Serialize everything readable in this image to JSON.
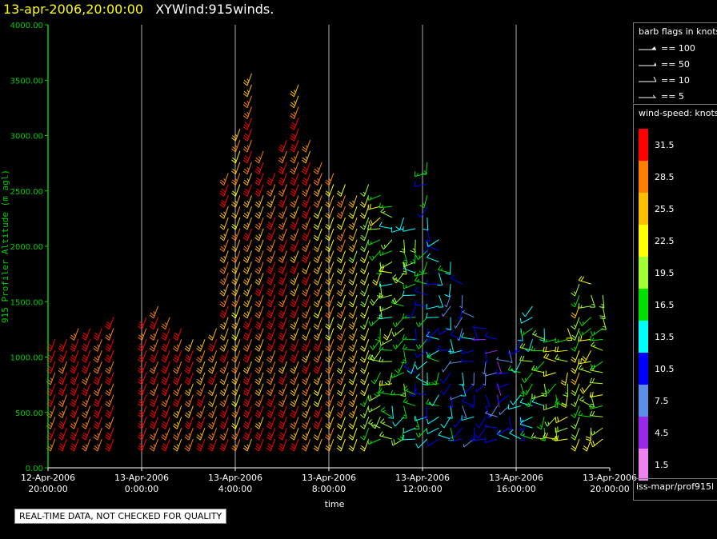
{
  "title": {
    "datetime": "13-apr-2006,20:00:00",
    "name": "XYWind:915winds."
  },
  "notice": "REAL-TIME DATA, NOT CHECKED FOR QUALITY",
  "legend": {
    "flags_title": "barb flags in knots",
    "flags": [
      {
        "label": "== 100"
      },
      {
        "label": "== 50"
      },
      {
        "label": "== 10"
      },
      {
        "label": "== 5"
      }
    ],
    "speed_title": "wind-speed: knots",
    "speed_scale": [
      {
        "label": "31.5",
        "color": "#ff0000"
      },
      {
        "label": "28.5",
        "color": "#ff8000"
      },
      {
        "label": "25.5",
        "color": "#ffbf00"
      },
      {
        "label": "22.5",
        "color": "#ffff00"
      },
      {
        "label": "19.5",
        "color": "#a0ff30"
      },
      {
        "label": "16.5",
        "color": "#00e000"
      },
      {
        "label": "13.5",
        "color": "#00ffff"
      },
      {
        "label": "10.5",
        "color": "#0000ff"
      },
      {
        "label": "7.5",
        "color": "#5a8ee8"
      },
      {
        "label": "4.5",
        "color": "#9a28e8"
      },
      {
        "label": "1.5",
        "color": "#ee82ee"
      }
    ]
  },
  "source": "iss-mapr/prof915l",
  "chart_data": {
    "type": "wind-barb",
    "ylabel": "915 Profiler Altitude (m agl)",
    "xlabel": "time",
    "ylim": [
      0,
      4000
    ],
    "y_ticks": [
      "0.00",
      "500.00",
      "1000.00",
      "1500.00",
      "2000.00",
      "2500.00",
      "3000.00",
      "3500.00",
      "4000.00"
    ],
    "xlim_hours": [
      0,
      24
    ],
    "x_ticks": [
      {
        "hour": 0,
        "line1": "12-Apr-2006",
        "line2": "20:00:00"
      },
      {
        "hour": 4,
        "line1": "13-Apr-2006",
        "line2": "0:00:00"
      },
      {
        "hour": 8,
        "line1": "13-Apr-2006",
        "line2": "4:00:00"
      },
      {
        "hour": 12,
        "line1": "13-Apr-2006",
        "line2": "8:00:00"
      },
      {
        "hour": 16,
        "line1": "13-Apr-2006",
        "line2": "12:00:00"
      },
      {
        "hour": 20,
        "line1": "13-Apr-2006",
        "line2": "16:00:00"
      },
      {
        "hour": 24,
        "line1": "13-Apr-2006",
        "line2": "20:00:00"
      }
    ],
    "vertical_grid": true,
    "profiles": [
      {
        "hour": 0.3,
        "top": 1200,
        "speed": 31
      },
      {
        "hour": 0.8,
        "top": 1180,
        "speed": 31
      },
      {
        "hour": 1.3,
        "top": 1300,
        "speed": 31
      },
      {
        "hour": 1.8,
        "top": 1300,
        "speed": 31
      },
      {
        "hour": 2.3,
        "top": 1300,
        "speed": 31
      },
      {
        "hour": 2.8,
        "top": 1400,
        "speed": 31
      },
      {
        "hour": 4.2,
        "top": 1420,
        "speed": 31
      },
      {
        "hour": 4.7,
        "top": 1500,
        "speed": 31
      },
      {
        "hour": 5.2,
        "top": 1420,
        "speed": 31
      },
      {
        "hour": 5.7,
        "top": 1300,
        "speed": 30
      },
      {
        "hour": 6.2,
        "top": 1250,
        "speed": 30
      },
      {
        "hour": 6.7,
        "top": 1200,
        "speed": 29
      },
      {
        "hour": 7.2,
        "top": 1300,
        "speed": 28
      },
      {
        "hour": 7.7,
        "top": 2700,
        "speed": 27
      },
      {
        "hour": 8.2,
        "top": 3100,
        "speed": 26
      },
      {
        "hour": 8.7,
        "top": 3650,
        "speed": 29
      },
      {
        "hour": 9.2,
        "top": 2900,
        "speed": 29
      },
      {
        "hour": 9.7,
        "top": 2700,
        "speed": 30
      },
      {
        "hour": 10.2,
        "top": 3000,
        "speed": 30
      },
      {
        "hour": 10.7,
        "top": 3550,
        "speed": 29
      },
      {
        "hour": 11.2,
        "top": 3000,
        "speed": 28
      },
      {
        "hour": 11.7,
        "top": 2800,
        "speed": 27
      },
      {
        "hour": 12.2,
        "top": 2700,
        "speed": 26
      },
      {
        "hour": 12.7,
        "top": 2600,
        "speed": 25
      },
      {
        "hour": 13.2,
        "top": 2500,
        "speed": 23
      },
      {
        "hour": 13.7,
        "top": 2600,
        "speed": 21
      },
      {
        "hour": 14.2,
        "top": 2500,
        "speed": 19
      },
      {
        "hour": 14.7,
        "top": 2400,
        "speed": 18
      },
      {
        "hour": 15.2,
        "top": 2300,
        "speed": 17
      },
      {
        "hour": 15.7,
        "top": 2200,
        "speed": 15
      },
      {
        "hour": 16.2,
        "top": 2800,
        "speed": 14
      },
      {
        "hour": 16.7,
        "top": 2100,
        "speed": 13
      },
      {
        "hour": 17.2,
        "top": 1900,
        "speed": 12
      },
      {
        "hour": 17.7,
        "top": 1700,
        "speed": 11
      },
      {
        "hour": 18.2,
        "top": 1400,
        "speed": 10
      },
      {
        "hour": 18.7,
        "top": 1300,
        "speed": 9
      },
      {
        "hour": 19.2,
        "top": 1200,
        "speed": 8
      },
      {
        "hour": 19.7,
        "top": 1100,
        "speed": 10
      },
      {
        "hour": 20.2,
        "top": 1300,
        "speed": 13
      },
      {
        "hour": 20.7,
        "top": 1500,
        "speed": 17
      },
      {
        "hour": 21.2,
        "top": 1350,
        "speed": 18
      },
      {
        "hour": 21.7,
        "top": 1200,
        "speed": 19
      },
      {
        "hour": 22.2,
        "top": 1300,
        "speed": 20
      },
      {
        "hour": 22.7,
        "top": 1700,
        "speed": 21
      },
      {
        "hour": 23.2,
        "top": 1700,
        "speed": 20
      },
      {
        "hour": 23.7,
        "top": 1600,
        "speed": 19
      }
    ]
  }
}
